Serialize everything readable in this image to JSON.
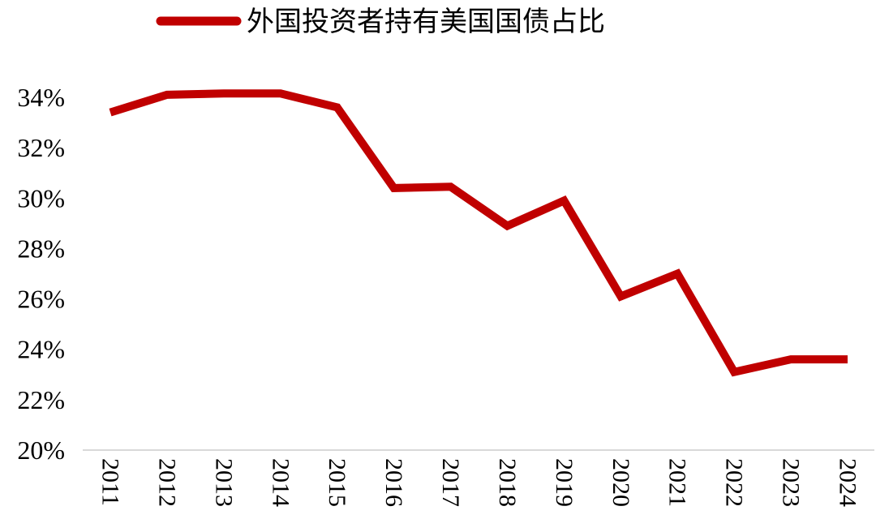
{
  "chart_data": {
    "type": "line",
    "title": "",
    "xlabel": "",
    "ylabel": "",
    "x": [
      "2011",
      "2012",
      "2013",
      "2014",
      "2015",
      "2016",
      "2017",
      "2018",
      "2019",
      "2020",
      "2021",
      "2022",
      "2023",
      "2024"
    ],
    "series": [
      {
        "name": "外国投资者持有美国国债占比",
        "values": [
          33.4,
          34.1,
          34.15,
          34.15,
          33.6,
          30.4,
          30.45,
          28.9,
          29.9,
          26.1,
          27.0,
          23.1,
          23.6,
          23.6
        ],
        "color": "#C00000"
      }
    ],
    "ylim": [
      20,
      34
    ],
    "yticks": [
      20,
      22,
      24,
      26,
      28,
      30,
      32,
      34
    ],
    "ytick_labels": [
      "20%",
      "22%",
      "24%",
      "26%",
      "28%",
      "30%",
      "32%",
      "34%"
    ],
    "grid": false,
    "legend_position": "top-center",
    "axis_color": "#D9D9D9"
  }
}
